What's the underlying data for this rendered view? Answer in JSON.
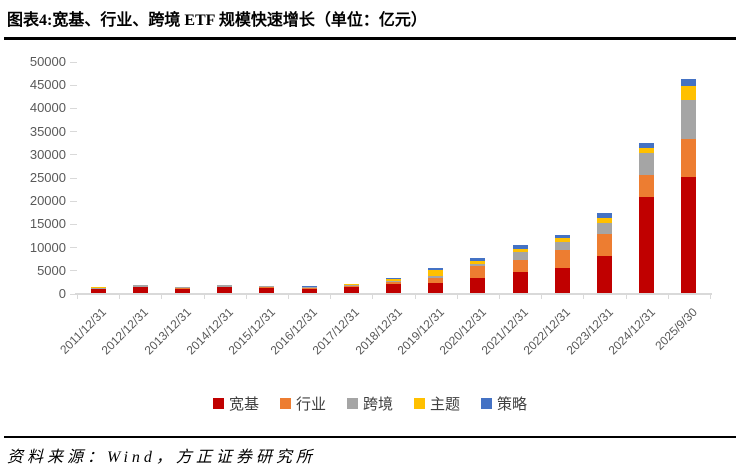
{
  "header": {
    "title": "图表4:宽基、行业、跨境 ETF 规模快速增长（单位：亿元）"
  },
  "chart_data": {
    "type": "bar",
    "stacked": true,
    "unit": "亿元",
    "categories": [
      "2011/12/31",
      "2012/12/31",
      "2013/12/31",
      "2014/12/31",
      "2015/12/31",
      "2016/12/31",
      "2017/12/31",
      "2018/12/31",
      "2019/12/31",
      "2020/12/31",
      "2021/12/31",
      "2022/12/31",
      "2023/12/31",
      "2024/12/31",
      "2025/9/30"
    ],
    "series": [
      {
        "name": "宽基",
        "color": "#C00000",
        "values": [
          800,
          1300,
          850,
          1200,
          1150,
          950,
          1300,
          1950,
          2200,
          3300,
          4450,
          5400,
          7900,
          20800,
          24900
        ]
      },
      {
        "name": "行业",
        "color": "#ED7D31",
        "values": [
          80,
          80,
          150,
          200,
          150,
          150,
          180,
          400,
          950,
          2500,
          2750,
          3900,
          4800,
          4650,
          8400
        ]
      },
      {
        "name": "跨境",
        "color": "#A5A5A5",
        "values": [
          300,
          250,
          200,
          300,
          220,
          200,
          260,
          250,
          500,
          550,
          1700,
          1650,
          2350,
          4650,
          8400
        ]
      },
      {
        "name": "主题",
        "color": "#FFC000",
        "values": [
          50,
          30,
          40,
          50,
          30,
          100,
          100,
          470,
          1250,
          600,
          650,
          850,
          1200,
          1150,
          2850
        ]
      },
      {
        "name": "策略",
        "color": "#4472C4",
        "values": [
          70,
          40,
          60,
          50,
          50,
          50,
          60,
          230,
          500,
          600,
          850,
          750,
          950,
          1000,
          1500
        ]
      }
    ],
    "ylim": [
      0,
      50000
    ],
    "yticks": [
      0,
      5000,
      10000,
      15000,
      20000,
      25000,
      30000,
      35000,
      40000,
      45000,
      50000
    ],
    "legend_position": "bottom",
    "grid": false,
    "axis_color": "#D9D9D9",
    "tick_label_color": "#595959"
  },
  "footer": {
    "source": "资料来源：Wind，方正证券研究所"
  }
}
